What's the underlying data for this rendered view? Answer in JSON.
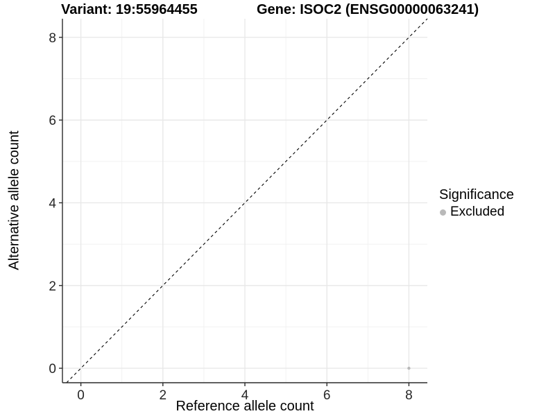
{
  "colors": {
    "background": "#ffffff",
    "grid_major": "#e7e7e7",
    "grid_minor": "#f0f0f0",
    "axis_line": "#2b2b2b",
    "tick_mark": "#2b2b2b",
    "tick_label": "#262626",
    "ref_line": "#000000",
    "point": "#b9b9b9"
  },
  "chart_data": {
    "type": "scatter",
    "title_left": "Variant: 19:55964455",
    "title_right": "Gene: ISOC2 (ENSG00000063241)",
    "xlabel": "Reference allele count",
    "ylabel": "Alternative allele count",
    "x_ticks": [
      0,
      2,
      4,
      6,
      8
    ],
    "y_ticks": [
      0,
      2,
      4,
      6,
      8
    ],
    "x_minor_ticks": [
      1,
      3,
      5,
      7
    ],
    "y_minor_ticks": [
      1,
      3,
      5,
      7
    ],
    "xlim": [
      -0.45,
      8.45
    ],
    "ylim": [
      -0.35,
      8.45
    ],
    "grid": true,
    "reference_line": {
      "style": "dashed",
      "slope": 1,
      "intercept": 0
    },
    "points": [
      {
        "x": 8,
        "y": 0,
        "series": "Excluded"
      }
    ],
    "legend": {
      "title": "Significance",
      "position": "right",
      "entries": [
        {
          "label": "Excluded",
          "color": "#b9b9b9"
        }
      ]
    }
  }
}
